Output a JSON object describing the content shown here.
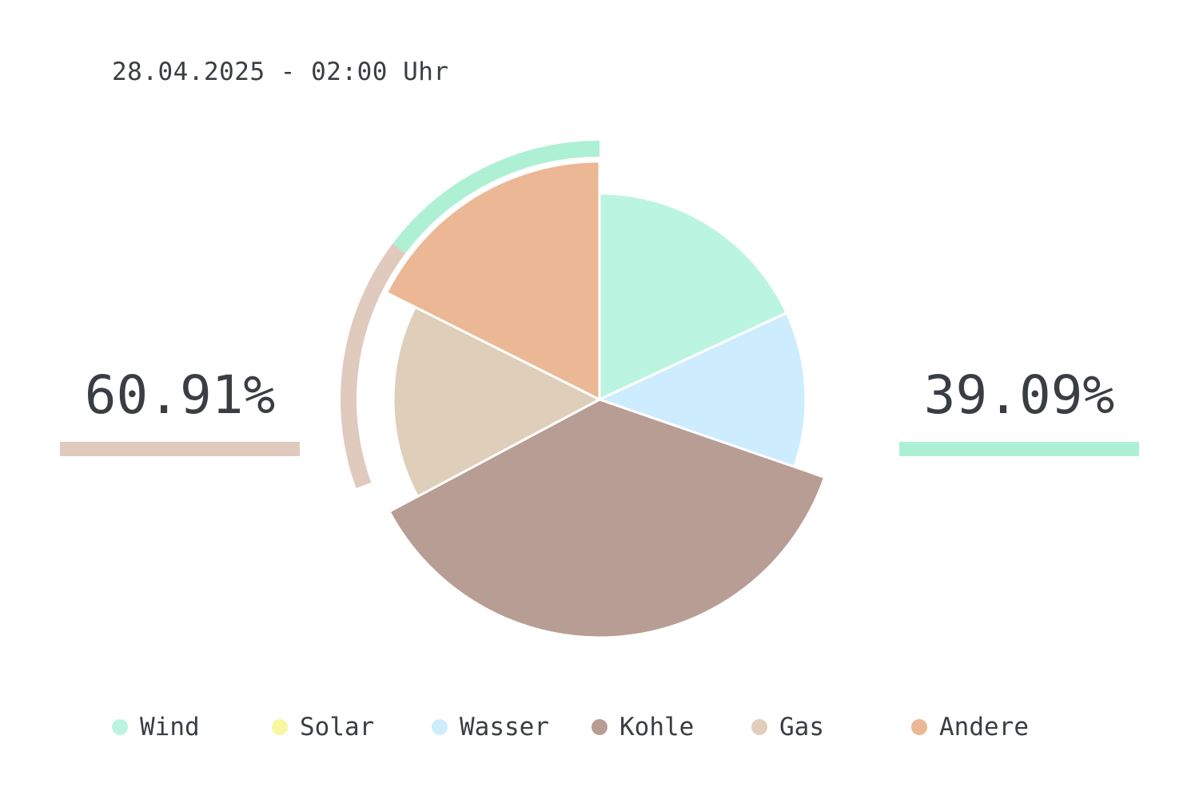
{
  "header": {
    "timestamp": "28.04.2025 - 02:00 Uhr"
  },
  "summary": {
    "fossil_percent": "60.91%",
    "renewable_percent": "39.09%",
    "fossil_color": "#e0cabd",
    "renewable_color": "#aef0d4"
  },
  "legend": [
    {
      "label": "Wind",
      "color": "#bbf5e2"
    },
    {
      "label": "Solar",
      "color": "#f7f7a0"
    },
    {
      "label": "Wasser",
      "color": "#cdecfd"
    },
    {
      "label": "Kohle",
      "color": "#b79d94"
    },
    {
      "label": "Gas",
      "color": "#dfceb9"
    },
    {
      "label": "Andere",
      "color": "#ebb794"
    }
  ],
  "chart_data": {
    "type": "pie",
    "categories": [
      "Wind",
      "Solar",
      "Wasser",
      "Kohle",
      "Gas",
      "Andere"
    ],
    "values": [
      18.1,
      0.0,
      12.2,
      36.9,
      15.2,
      17.6
    ],
    "colors": [
      "#bbf5e2",
      "#f7f7a0",
      "#cdecfd",
      "#b79d94",
      "#dfceb9",
      "#ebb794"
    ],
    "exploded": [
      "Kohle",
      "Andere"
    ],
    "outer_arcs": [
      {
        "group": "renewable",
        "value": 39.09,
        "color": "#aef0d4"
      },
      {
        "group": "fossil",
        "value": 60.91,
        "color": "#e0cabd"
      }
    ]
  }
}
